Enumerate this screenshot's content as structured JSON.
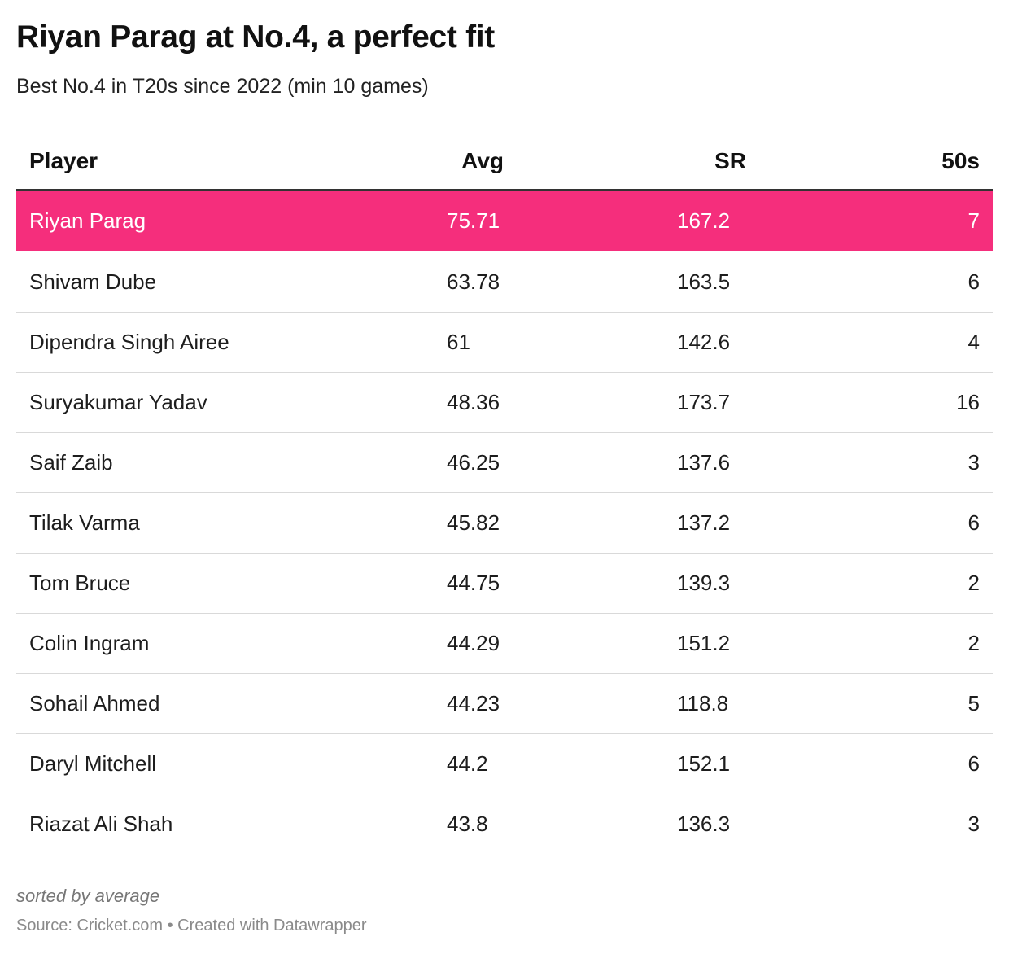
{
  "title": "Riyan Parag at No.4, a perfect fit",
  "subtitle": "Best No.4 in T20s since 2022 (min 10 games)",
  "notes": "sorted by average",
  "source": "Source: Cricket.com • Created with Datawrapper",
  "colors": {
    "highlight": "#f52e7c",
    "header_rule": "#333333",
    "row_rule": "#d9d9d9"
  },
  "chart_data": {
    "type": "table",
    "columns": [
      "Player",
      "Avg",
      "SR",
      "50s"
    ],
    "highlight_row": 0,
    "rows": [
      {
        "player": "Riyan Parag",
        "avg": "75.71",
        "sr": "167.2",
        "fifties": "7"
      },
      {
        "player": "Shivam Dube",
        "avg": "63.78",
        "sr": "163.5",
        "fifties": "6"
      },
      {
        "player": "Dipendra Singh Airee",
        "avg": "61",
        "sr": "142.6",
        "fifties": "4"
      },
      {
        "player": "Suryakumar Yadav",
        "avg": "48.36",
        "sr": "173.7",
        "fifties": "16"
      },
      {
        "player": "Saif Zaib",
        "avg": "46.25",
        "sr": "137.6",
        "fifties": "3"
      },
      {
        "player": "Tilak Varma",
        "avg": "45.82",
        "sr": "137.2",
        "fifties": "6"
      },
      {
        "player": "Tom Bruce",
        "avg": "44.75",
        "sr": "139.3",
        "fifties": "2"
      },
      {
        "player": "Colin Ingram",
        "avg": "44.29",
        "sr": "151.2",
        "fifties": "2"
      },
      {
        "player": "Sohail Ahmed",
        "avg": "44.23",
        "sr": "118.8",
        "fifties": "5"
      },
      {
        "player": "Daryl Mitchell",
        "avg": "44.2",
        "sr": "152.1",
        "fifties": "6"
      },
      {
        "player": "Riazat Ali Shah",
        "avg": "43.8",
        "sr": "136.3",
        "fifties": "3"
      }
    ]
  }
}
